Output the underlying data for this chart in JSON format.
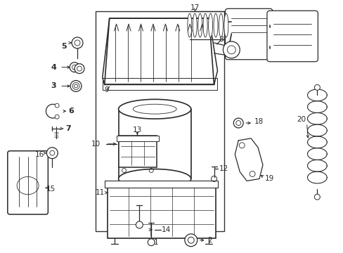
{
  "bg_color": "#ffffff",
  "line_color": "#2a2a2a",
  "fig_width": 4.89,
  "fig_height": 3.6,
  "dpi": 100,
  "label_fontsize": 7.5,
  "lw": 0.9
}
